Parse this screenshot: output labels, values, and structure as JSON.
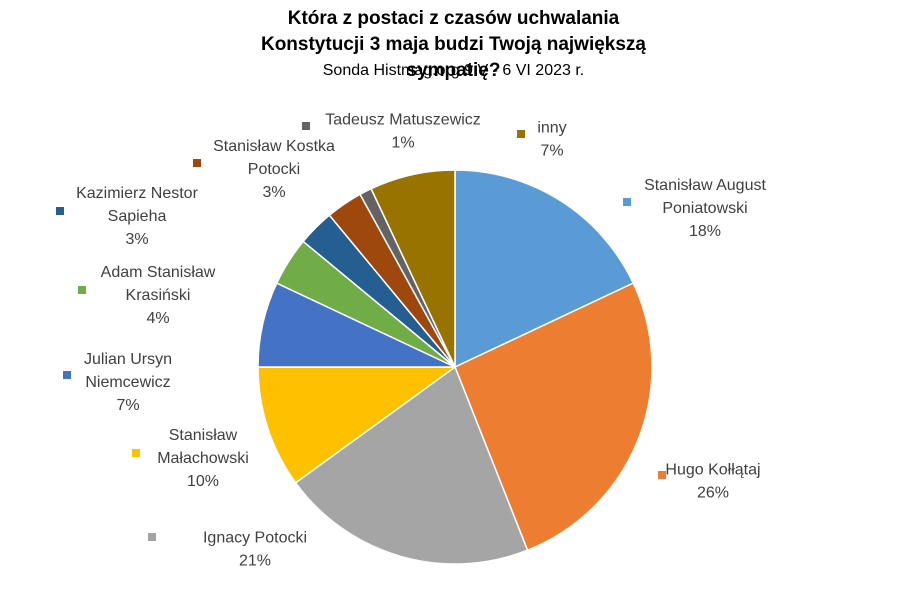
{
  "chart_data": {
    "type": "pie",
    "title": "Która z postaci z czasów uchwalania Konstytucji 3 maja budzi Twoją największą sympatię?",
    "subtitle": "Sonda Histmag.org 9 V - 6 VI 2023 r.",
    "start_angle_deg": 0,
    "direction": "clockwise",
    "slices": [
      {
        "label": "Stanisław August Poniatowski",
        "label_lines": [
          "Stanisław August",
          "Poniatowski"
        ],
        "value": 18,
        "value_label": "18%",
        "color": "#5B9BD5"
      },
      {
        "label": "Hugo Kołłątaj",
        "label_lines": [
          "Hugo Kołłątaj"
        ],
        "value": 26,
        "value_label": "26%",
        "color": "#ED7D31"
      },
      {
        "label": "Ignacy Potocki",
        "label_lines": [
          "Ignacy Potocki"
        ],
        "value": 21,
        "value_label": "21%",
        "color": "#A5A5A5"
      },
      {
        "label": "Stanisław Małachowski",
        "label_lines": [
          "Stanisław",
          "Małachowski"
        ],
        "value": 10,
        "value_label": "10%",
        "color": "#FFC000"
      },
      {
        "label": "Julian Ursyn Niemcewicz",
        "label_lines": [
          "Julian Ursyn",
          "Niemcewicz"
        ],
        "value": 7,
        "value_label": "7%",
        "color": "#4472C4"
      },
      {
        "label": "Adam Stanisław Krasiński",
        "label_lines": [
          "Adam Stanisław",
          "Krasiński"
        ],
        "value": 4,
        "value_label": "4%",
        "color": "#70AD47"
      },
      {
        "label": "Kazimierz Nestor Sapieha",
        "label_lines": [
          "Kazimierz Nestor",
          "Sapieha"
        ],
        "value": 3,
        "value_label": "3%",
        "color": "#255E91"
      },
      {
        "label": "Stanisław Kostka Potocki",
        "label_lines": [
          "Stanisław Kostka",
          "Potocki"
        ],
        "value": 3,
        "value_label": "3%",
        "color": "#9E480E"
      },
      {
        "label": "Tadeusz Matuszewicz",
        "label_lines": [
          "Tadeusz Matuszewicz"
        ],
        "value": 1,
        "value_label": "1%",
        "color": "#636363"
      },
      {
        "label": "inny",
        "label_lines": [
          "inny"
        ],
        "value": 7,
        "value_label": "7%",
        "color": "#997300"
      }
    ]
  }
}
